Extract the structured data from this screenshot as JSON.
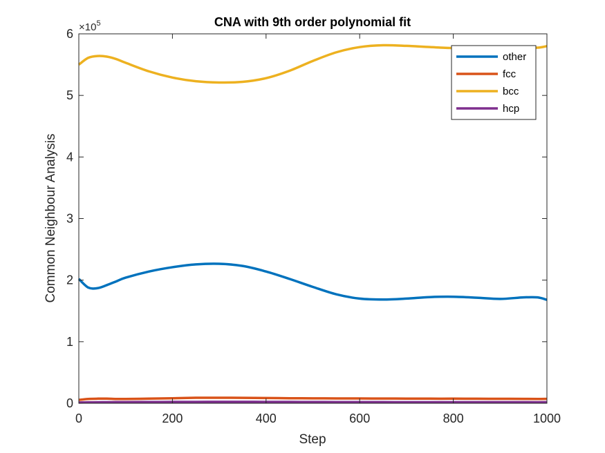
{
  "chart_data": {
    "type": "line",
    "title": "CNA with 9th order polynomial fit",
    "xlabel": "Step",
    "ylabel": "Common Neighbour Analysis",
    "xlim": [
      0,
      1000
    ],
    "ylim": [
      0,
      600000
    ],
    "y_multiplier": "×10",
    "y_multiplier_exponent": "5",
    "x_ticks": [
      0,
      200,
      400,
      600,
      800,
      1000
    ],
    "y_ticks": [
      0,
      100000,
      200000,
      300000,
      400000,
      500000,
      600000
    ],
    "x_tick_labels": [
      "0",
      "200",
      "400",
      "600",
      "800",
      "1000"
    ],
    "y_tick_labels": [
      "0",
      "1",
      "2",
      "3",
      "4",
      "5",
      "6"
    ],
    "legend_position": "top-right",
    "grid": false,
    "x": [
      0,
      20,
      40,
      60,
      80,
      100,
      150,
      200,
      250,
      300,
      350,
      400,
      450,
      500,
      550,
      600,
      650,
      700,
      750,
      800,
      850,
      900,
      950,
      980,
      1000
    ],
    "series": [
      {
        "name": "other",
        "color": "#0072BD",
        "values": [
          202000,
          188000,
          187000,
          192000,
          198000,
          204000,
          214000,
          221000,
          225500,
          226500,
          223000,
          214000,
          202000,
          189000,
          177000,
          170000,
          168500,
          170000,
          172500,
          173000,
          171500,
          169500,
          172000,
          172000,
          168000
        ]
      },
      {
        "name": "fcc",
        "color": "#D95319",
        "values": [
          5500,
          7000,
          7500,
          7500,
          7000,
          7000,
          7500,
          8200,
          8900,
          9000,
          8800,
          8500,
          8200,
          8000,
          7900,
          7800,
          7700,
          7600,
          7500,
          7500,
          7400,
          7300,
          7200,
          7000,
          7200
        ]
      },
      {
        "name": "bcc",
        "color": "#EDB120",
        "values": [
          550000,
          561000,
          564000,
          563000,
          559000,
          553000,
          539000,
          529000,
          523000,
          521000,
          522000,
          528000,
          540000,
          556000,
          570000,
          578500,
          581500,
          580500,
          578500,
          577000,
          578000,
          579500,
          578500,
          577500,
          580000
        ]
      },
      {
        "name": "hcp",
        "color": "#7E2F8E",
        "values": [
          1200,
          1500,
          1700,
          1800,
          1900,
          2000,
          2100,
          2200,
          2300,
          2400,
          2400,
          2300,
          2200,
          2100,
          2000,
          1950,
          1900,
          1850,
          1800,
          1800,
          1800,
          1800,
          1800,
          1750,
          1800
        ]
      }
    ]
  }
}
